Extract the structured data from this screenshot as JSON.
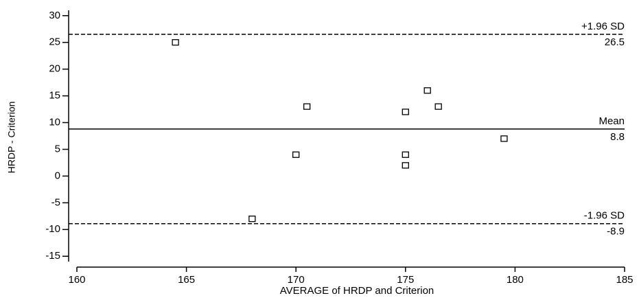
{
  "chart_data": {
    "type": "scatter",
    "xlabel": "AVERAGE of HRDP and Criterion",
    "ylabel": "HRDP - Criterion",
    "x": [
      164.5,
      168,
      170,
      170.5,
      175,
      175,
      175,
      176,
      176.5,
      179.5
    ],
    "values": [
      25,
      -8,
      4,
      13,
      12,
      4,
      2,
      16,
      13,
      7
    ],
    "xlim": [
      160,
      185
    ],
    "xticks": [
      160,
      165,
      170,
      175,
      180,
      185
    ],
    "ylim": [
      -16,
      31
    ],
    "yticks": [
      -15,
      -10,
      -5,
      0,
      5,
      10,
      15,
      20,
      25,
      30
    ],
    "lines": [
      {
        "label": "+1.96 SD",
        "value": 26.5,
        "style": "dashed"
      },
      {
        "label": "Mean",
        "value": 8.8,
        "style": "solid"
      },
      {
        "label": "-1.96 SD",
        "value": -8.9,
        "style": "dashed"
      }
    ]
  }
}
